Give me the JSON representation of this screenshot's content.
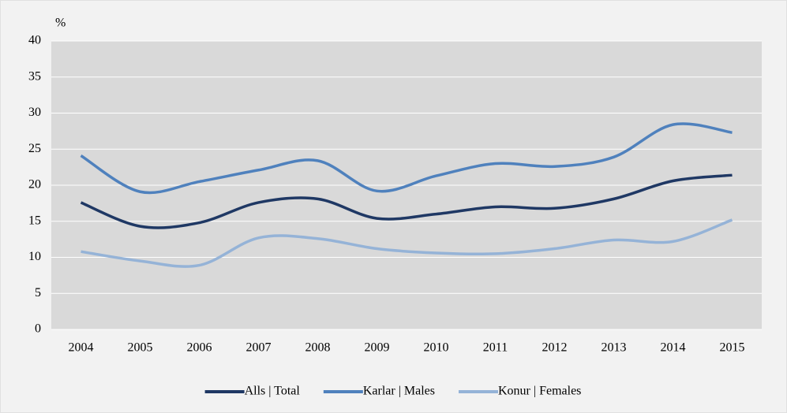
{
  "chart_data": {
    "type": "line",
    "y_label": "%",
    "categories": [
      "2004",
      "2005",
      "2006",
      "2007",
      "2008",
      "2009",
      "2010",
      "2011",
      "2012",
      "2013",
      "2014",
      "2015"
    ],
    "series": [
      {
        "name": "Alls | Total",
        "color": "#1f3864",
        "values": [
          17.6,
          14.3,
          14.8,
          17.6,
          18.1,
          15.4,
          16.0,
          17.0,
          16.8,
          18.1,
          20.6,
          21.4
        ]
      },
      {
        "name": "Karlar | Males",
        "color": "#4f81bd",
        "values": [
          24.1,
          19.1,
          20.5,
          22.1,
          23.4,
          19.2,
          21.3,
          23.0,
          22.6,
          23.9,
          28.4,
          27.3
        ]
      },
      {
        "name": "Konur | Females",
        "color": "#95b3d7",
        "values": [
          10.8,
          9.5,
          8.9,
          12.7,
          12.6,
          11.2,
          10.6,
          10.5,
          11.2,
          12.4,
          12.2,
          15.2
        ]
      }
    ],
    "ylim": [
      0,
      40
    ],
    "yticks": [
      0,
      5,
      10,
      15,
      20,
      25,
      30,
      35,
      40
    ],
    "grid": true,
    "smooth": true,
    "legend": "bottom"
  }
}
